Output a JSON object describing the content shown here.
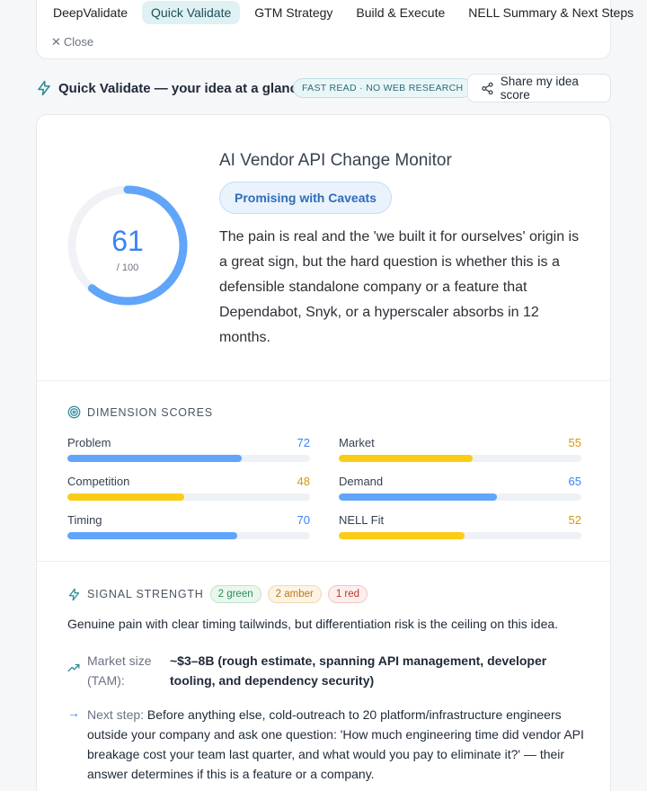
{
  "nav": {
    "tabs": [
      {
        "label": "DeepValidate",
        "active": false
      },
      {
        "label": "Quick Validate",
        "active": true
      },
      {
        "label": "GTM Strategy",
        "active": false
      },
      {
        "label": "Build & Execute",
        "active": false
      },
      {
        "label": "NELL Summary & Next Steps",
        "active": false
      }
    ],
    "close_label": "Close"
  },
  "header": {
    "title": "Quick Validate — your idea at a glance",
    "badge": "FAST READ · NO WEB RESEARCH",
    "share_label": "Share my idea score"
  },
  "score": {
    "value": 61,
    "value_text": "61",
    "out_of": "/ 100",
    "ring_color": "#60a5fa"
  },
  "idea": {
    "title": "AI Vendor API Change Monitor",
    "verdict": "Promising with Caveats",
    "summary": "The pain is real and the 'we built it for ourselves' origin is a great sign, but the hard question is whether this is a defensible standalone company or a feature that Dependabot, Snyk, or a hyperscaler absorbs in 12 months."
  },
  "dimensions": {
    "heading": "DIMENSION SCORES",
    "items": [
      {
        "name": "Problem",
        "score": "72",
        "color": "#60a5fa",
        "text_color": "#3b82f6"
      },
      {
        "name": "Market",
        "score": "55",
        "color": "#facc15",
        "text_color": "#d49a0f"
      },
      {
        "name": "Competition",
        "score": "48",
        "color": "#facc15",
        "text_color": "#d49a0f"
      },
      {
        "name": "Demand",
        "score": "65",
        "color": "#60a5fa",
        "text_color": "#3b82f6"
      },
      {
        "name": "Timing",
        "score": "70",
        "color": "#60a5fa",
        "text_color": "#3b82f6"
      },
      {
        "name": "NELL Fit",
        "score": "52",
        "color": "#facc15",
        "text_color": "#d49a0f"
      }
    ]
  },
  "signal": {
    "heading": "SIGNAL STRENGTH",
    "green": "2 green",
    "amber": "2 amber",
    "red": "1 red",
    "text": "Genuine pain with clear timing tailwinds, but differentiation risk is the ceiling on this idea.",
    "tam_label": "Market size (TAM):",
    "tam_value": "~$3–8B (rough estimate, spanning API management, developer tooling, and dependency security)",
    "next_label": "Next step:",
    "next_text": "Before anything else, cold-outreach to 20 platform/infrastructure engineers outside your company and ask one question: 'How much engineering time did vendor API breakage cost your team last quarter, and what would you pay to eliminate it?' — their answer determines if this is a feature or a company."
  },
  "icons": {
    "header": "lightning-icon",
    "share": "share-icon",
    "dimensions": "target-icon",
    "signal": "lightning-icon",
    "tam": "trend-up-icon",
    "next": "arrow-right-icon",
    "close": "close-icon"
  },
  "colors": {
    "accent_teal": "#dff1f3",
    "accent_blue": "#3b82f6",
    "amber": "#facc15"
  }
}
